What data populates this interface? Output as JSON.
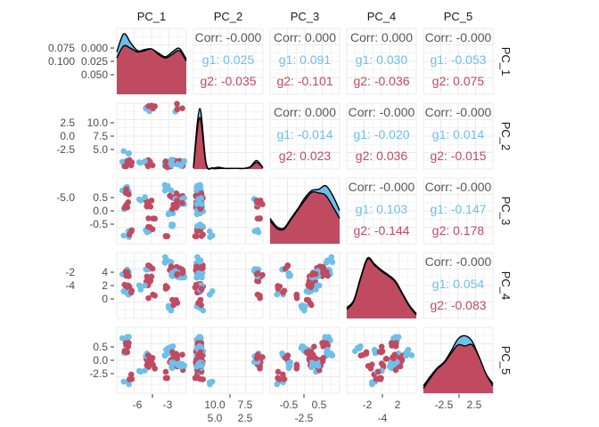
{
  "chart_data": {
    "type": "scatter-matrix",
    "variables": [
      "PC_1",
      "PC_2",
      "PC_3",
      "PC_4",
      "PC_5"
    ],
    "groups": [
      {
        "name": "g1",
        "color": "#6EBFE9"
      },
      {
        "name": "g2",
        "color": "#C04B61"
      }
    ],
    "text_color": "#595959",
    "grid": true,
    "left_tick_labels": [
      [
        "0.000",
        "0.025",
        "0.050",
        "0.075",
        "0.100"
      ],
      [
        "10.0",
        "7.5",
        "5.0",
        "2.5",
        "0.0",
        "-2.5"
      ],
      [
        "0.5",
        "0.0",
        "-0.5",
        "-5.0"
      ],
      [
        "4",
        "2",
        "0",
        "-2",
        "-4"
      ],
      [
        "0.5",
        "0.0",
        "-2.5"
      ]
    ],
    "bottom_tick_labels": [
      [
        "-6",
        "-3"
      ],
      [
        "10.0",
        "7.5",
        "5.0",
        "2.5"
      ],
      [
        "-0.5",
        "0.5",
        "-2.5"
      ],
      [
        "-2",
        "2",
        "-4"
      ],
      [
        "-2.5",
        "2.5"
      ]
    ],
    "correlations": [
      {
        "row": 1,
        "col": 2,
        "corr": "Corr: -0.000",
        "g1": "g1: 0.025",
        "g2": "g2: -0.035"
      },
      {
        "row": 1,
        "col": 3,
        "corr": "Corr: 0.000",
        "g1": "g1: 0.091",
        "g2": "g2: -0.101"
      },
      {
        "row": 1,
        "col": 4,
        "corr": "Corr: 0.000",
        "g1": "g1: 0.030",
        "g2": "g2: -0.036"
      },
      {
        "row": 1,
        "col": 5,
        "corr": "Corr: -0.000",
        "g1": "g1: -0.053",
        "g2": "g2: 0.075"
      },
      {
        "row": 2,
        "col": 3,
        "corr": "Corr: 0.000",
        "g1": "g1: -0.014",
        "g2": "g2: 0.023"
      },
      {
        "row": 2,
        "col": 4,
        "corr": "Corr: -0.000",
        "g1": "g1: -0.020",
        "g2": "g2: 0.036"
      },
      {
        "row": 2,
        "col": 5,
        "corr": "Corr: -0.000",
        "g1": "g1: 0.014",
        "g2": "g2: -0.015"
      },
      {
        "row": 3,
        "col": 4,
        "corr": "Corr: -0.000",
        "g1": "g1: 0.103",
        "g2": "g2: -0.144"
      },
      {
        "row": 3,
        "col": 5,
        "corr": "Corr: -0.000",
        "g1": "g1: -0.147",
        "g2": "g2: 0.178"
      },
      {
        "row": 4,
        "col": 5,
        "corr": "Corr: -0.000",
        "g1": "g1: 0.054",
        "g2": "g2: -0.083"
      }
    ],
    "densities": [
      {
        "g1": [
          0.7,
          1.0,
          0.85,
          0.72,
          0.74,
          0.75,
          0.68,
          0.62,
          0.7,
          0.76,
          0.58
        ],
        "g2": [
          0.6,
          0.8,
          0.76,
          0.7,
          0.72,
          0.75,
          0.66,
          0.6,
          0.66,
          0.72,
          0.55
        ]
      },
      {
        "g1": [
          0.02,
          1.0,
          0.1,
          0.02,
          0.03,
          0.01,
          0.01,
          0.01,
          0.01,
          0.04,
          0.14,
          0.02
        ],
        "g2": [
          0.02,
          0.85,
          0.08,
          0.01,
          0.01,
          0.01,
          0.01,
          0.01,
          0.01,
          0.03,
          0.11,
          0.02
        ]
      },
      {
        "g1": [
          0.42,
          0.28,
          0.26,
          0.42,
          0.58,
          0.76,
          0.88,
          0.9,
          0.96,
          0.8,
          0.55
        ],
        "g2": [
          0.38,
          0.25,
          0.24,
          0.4,
          0.56,
          0.72,
          0.85,
          0.84,
          0.8,
          0.62,
          0.42
        ]
      },
      {
        "g1": [
          0.18,
          0.3,
          0.68,
          1.0,
          0.9,
          0.8,
          0.72,
          0.62,
          0.42,
          0.22,
          0.08
        ],
        "g2": [
          0.15,
          0.28,
          0.66,
          0.98,
          0.88,
          0.78,
          0.7,
          0.6,
          0.4,
          0.2,
          0.06
        ]
      },
      {
        "g1": [
          0.12,
          0.28,
          0.42,
          0.52,
          0.7,
          0.9,
          0.95,
          0.86,
          0.6,
          0.32,
          0.16
        ],
        "g2": [
          0.08,
          0.25,
          0.4,
          0.5,
          0.66,
          0.8,
          0.78,
          0.8,
          0.6,
          0.32,
          0.12
        ]
      }
    ],
    "observation_clusters": [
      {
        "group": "g1",
        "n": 6,
        "values": [
          1.0,
          0.3,
          8.6,
          7.2,
          8.4
        ]
      },
      {
        "group": "g2",
        "n": 5,
        "values": [
          1.2,
          0.4,
          8.2,
          6.8,
          7.8
        ]
      },
      {
        "group": "g1",
        "n": 5,
        "values": [
          1.1,
          0.5,
          5.5,
          4.2,
          6.3
        ]
      },
      {
        "group": "g2",
        "n": 4,
        "values": [
          0.9,
          0.4,
          6.0,
          4.6,
          6.8
        ]
      },
      {
        "group": "g1",
        "n": 3,
        "values": [
          1.2,
          2.4,
          1.2,
          3.8,
          1.5
        ]
      },
      {
        "group": "g2",
        "n": 3,
        "values": [
          1.4,
          0.6,
          1.6,
          4.4,
          2.2
        ]
      },
      {
        "group": "g2",
        "n": 4,
        "values": [
          4.6,
          9.5,
          6.2,
          6.2,
          4.8
        ]
      },
      {
        "group": "g1",
        "n": 3,
        "values": [
          4.4,
          9.3,
          1.4,
          7.8,
          6.0
        ]
      },
      {
        "group": "g2",
        "n": 3,
        "values": [
          4.7,
          0.5,
          1.8,
          8.2,
          5.4
        ]
      },
      {
        "group": "g2",
        "n": 3,
        "values": [
          4.5,
          0.4,
          6.2,
          5.0,
          4.4
        ]
      },
      {
        "group": "g1",
        "n": 3,
        "values": [
          3.6,
          0.4,
          6.8,
          4.8,
          2.8
        ]
      },
      {
        "group": "g1",
        "n": 6,
        "values": [
          7.6,
          0.5,
          8.8,
          9.2,
          6.2
        ]
      },
      {
        "group": "g2",
        "n": 5,
        "values": [
          8.4,
          0.5,
          7.6,
          8.0,
          5.0
        ]
      },
      {
        "group": "g1",
        "n": 6,
        "values": [
          7.8,
          0.6,
          4.6,
          1.2,
          6.8
        ]
      },
      {
        "group": "g2",
        "n": 4,
        "values": [
          8.6,
          0.6,
          5.6,
          2.2,
          6.0
        ]
      },
      {
        "group": "g2",
        "n": 3,
        "values": [
          7.0,
          0.4,
          1.2,
          4.8,
          2.6
        ]
      },
      {
        "group": "g1",
        "n": 5,
        "values": [
          8.0,
          0.5,
          2.4,
          7.0,
          4.2
        ]
      },
      {
        "group": "g2",
        "n": 4,
        "values": [
          9.5,
          0.5,
          7.0,
          7.6,
          3.8
        ]
      },
      {
        "group": "g1",
        "n": 5,
        "values": [
          9.6,
          0.4,
          6.6,
          6.8,
          4.4
        ]
      },
      {
        "group": "g2",
        "n": 3,
        "values": [
          5.0,
          9.7,
          3.6,
          3.0,
          4.0
        ]
      },
      {
        "group": "g1",
        "n": 3,
        "values": [
          9.2,
          9.6,
          6.6,
          7.0,
          5.2
        ]
      },
      {
        "group": "g2",
        "n": 3,
        "values": [
          9.5,
          9.8,
          6.4,
          6.6,
          5.6
        ]
      }
    ],
    "value_range": [
      0,
      10
    ]
  }
}
